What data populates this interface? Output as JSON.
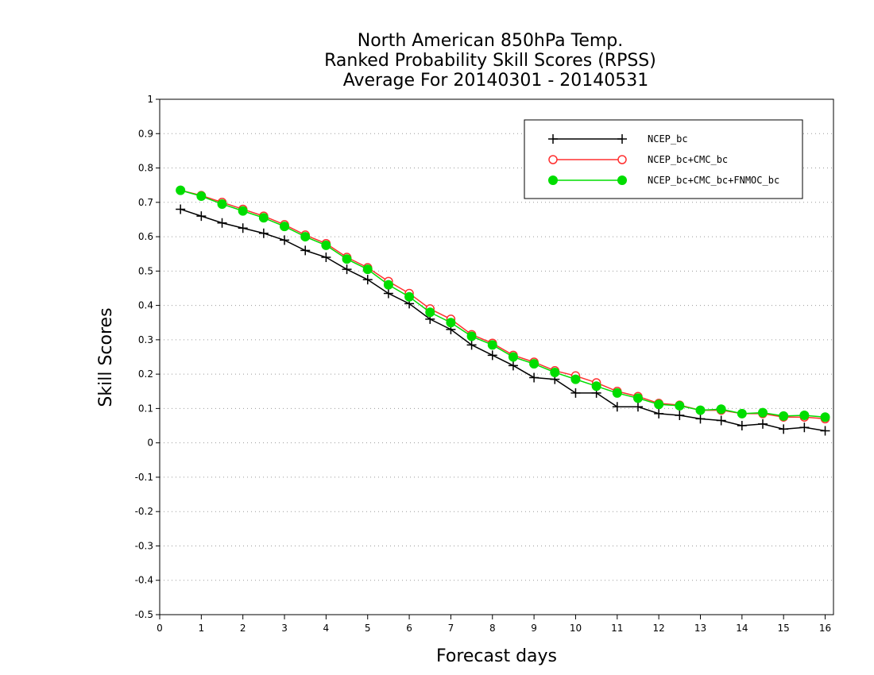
{
  "chart_data": {
    "type": "line",
    "title": [
      "North American 850hPa Temp.",
      "Ranked Probability Skill Scores (RPSS)",
      "Average For 20140301 - 20140531"
    ],
    "xlabel": "Forecast days",
    "ylabel": "Skill Scores",
    "xlim": [
      0,
      16.2
    ],
    "ylim": [
      -0.5,
      1
    ],
    "xticks": [
      0,
      1,
      2,
      3,
      4,
      5,
      6,
      7,
      8,
      9,
      10,
      11,
      12,
      13,
      14,
      15,
      16
    ],
    "yticks": [
      -0.5,
      -0.4,
      -0.3,
      -0.2,
      -0.1,
      0,
      0.1,
      0.2,
      0.3,
      0.4,
      0.5,
      0.6,
      0.7,
      0.8,
      0.9,
      1
    ],
    "ytick_labels": [
      "-0.5",
      "-0.4",
      "-0.3",
      "-0.2",
      "-0.1",
      "0",
      "0.1",
      "0.2",
      "0.3",
      "0.4",
      "0.5",
      "0.6",
      "0.7",
      "0.8",
      "0.9",
      "1"
    ],
    "grid": true,
    "legend_position": "top-right",
    "x": [
      0.5,
      1.0,
      1.5,
      2.0,
      2.5,
      3.0,
      3.5,
      4.0,
      4.5,
      5.0,
      5.5,
      6.0,
      6.5,
      7.0,
      7.5,
      8.0,
      8.5,
      9.0,
      9.5,
      10.0,
      10.5,
      11.0,
      11.5,
      12.0,
      12.5,
      13.0,
      13.5,
      14.0,
      14.5,
      15.0,
      15.5,
      16.0
    ],
    "series": [
      {
        "name": "NCEP_bc",
        "color": "#000000",
        "marker": "plus",
        "values": [
          0.68,
          0.66,
          0.64,
          0.625,
          0.61,
          0.59,
          0.56,
          0.54,
          0.505,
          0.475,
          0.435,
          0.405,
          0.36,
          0.33,
          0.285,
          0.255,
          0.225,
          0.19,
          0.185,
          0.145,
          0.145,
          0.105,
          0.105,
          0.085,
          0.08,
          0.07,
          0.065,
          0.05,
          0.055,
          0.04,
          0.045,
          0.035
        ]
      },
      {
        "name": "NCEP_bc+CMC_bc",
        "color": "#ff3030",
        "marker": "open-circle",
        "values": [
          0.735,
          0.72,
          0.7,
          0.68,
          0.66,
          0.635,
          0.605,
          0.58,
          0.54,
          0.51,
          0.47,
          0.435,
          0.39,
          0.36,
          0.315,
          0.29,
          0.255,
          0.235,
          0.21,
          0.195,
          0.175,
          0.15,
          0.135,
          0.115,
          0.11,
          0.095,
          0.095,
          0.085,
          0.085,
          0.075,
          0.075,
          0.07
        ]
      },
      {
        "name": "NCEP_bc+CMC_bc+FNMOC_bc",
        "color": "#00dd00",
        "marker": "filled-circle",
        "values": [
          0.735,
          0.718,
          0.695,
          0.675,
          0.655,
          0.63,
          0.6,
          0.575,
          0.535,
          0.505,
          0.46,
          0.425,
          0.38,
          0.35,
          0.31,
          0.285,
          0.25,
          0.23,
          0.205,
          0.185,
          0.165,
          0.145,
          0.13,
          0.112,
          0.108,
          0.095,
          0.098,
          0.085,
          0.088,
          0.078,
          0.08,
          0.075
        ]
      }
    ]
  }
}
